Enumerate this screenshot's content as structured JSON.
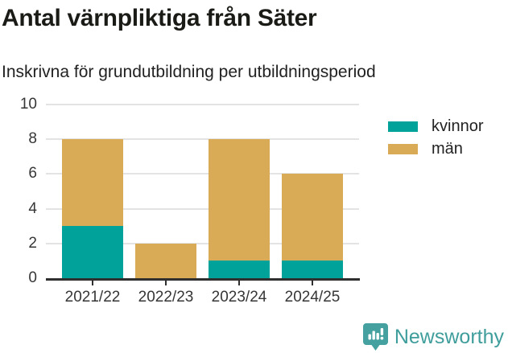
{
  "title": "Antal värnpliktiga från Säter",
  "subtitle": "Inskrivna för grundutbildning per utbildningsperiod",
  "colors": {
    "kvinnor": "#00a29a",
    "man": "#d9ab57",
    "grid": "#e3e3e3",
    "axis": "#2f2f2f",
    "title_text": "#1a1a16",
    "body_text": "#222222",
    "brand_teal": "#3f9e9c"
  },
  "chart_data": {
    "type": "bar",
    "stacked": true,
    "title": "Antal värnpliktiga från Säter",
    "subtitle": "Inskrivna för grundutbildning per utbildningsperiod",
    "categories": [
      "2021/22",
      "2022/23",
      "2023/24",
      "2024/25"
    ],
    "series": [
      {
        "name": "kvinnor",
        "color": "#00a29a",
        "values": [
          3,
          0,
          1,
          1
        ]
      },
      {
        "name": "män",
        "color": "#d9ab57",
        "values": [
          5,
          2,
          7,
          5
        ]
      }
    ],
    "totals": [
      8,
      2,
      8,
      6
    ],
    "xlabel": "",
    "ylabel": "",
    "ylim": [
      0,
      10
    ],
    "yticks": [
      0,
      2,
      4,
      6,
      8,
      10
    ],
    "grid": true,
    "legend_position": "right"
  },
  "footer": {
    "brand": "Newsworthy",
    "logo_icon": "bar-chart-speech-bubble-icon"
  }
}
